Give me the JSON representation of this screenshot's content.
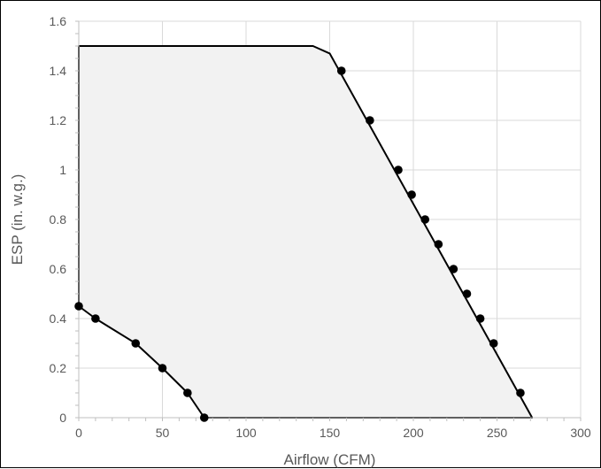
{
  "chart_data": {
    "type": "area",
    "title": "",
    "xlabel": "Airflow (CFM)",
    "ylabel": "ESP (in. w.g.)",
    "xlim": [
      0,
      300
    ],
    "ylim": [
      0,
      1.6
    ],
    "xticks": [
      "0",
      "50",
      "100",
      "150",
      "200",
      "250",
      "300"
    ],
    "yticks": [
      "0",
      "0.2",
      "0.4",
      "0.6",
      "0.8",
      "1",
      "1.2",
      "1.4",
      "1.6"
    ],
    "grid": "both",
    "legend": "none",
    "fill_color": "#f2f2f2",
    "line_color": "#000000",
    "envelope": {
      "x": [
        0,
        0,
        140,
        150,
        271,
        77,
        75,
        65,
        50,
        34,
        10,
        0
      ],
      "y": [
        0.45,
        1.5,
        1.5,
        1.47,
        0,
        0,
        0,
        0.1,
        0.2,
        0.3,
        0.4,
        0.45
      ]
    },
    "series": [
      {
        "x": [
          0,
          10,
          34,
          50,
          65,
          75
        ],
        "y": [
          0.45,
          0.4,
          0.3,
          0.2,
          0.1,
          0
        ]
      },
      {
        "x": [
          157,
          174,
          191,
          199,
          207,
          215,
          224,
          232,
          240,
          248,
          264
        ],
        "y": [
          1.4,
          1.2,
          1.0,
          0.9,
          0.8,
          0.7,
          0.6,
          0.5,
          0.4,
          0.3,
          0.1
        ]
      }
    ]
  }
}
